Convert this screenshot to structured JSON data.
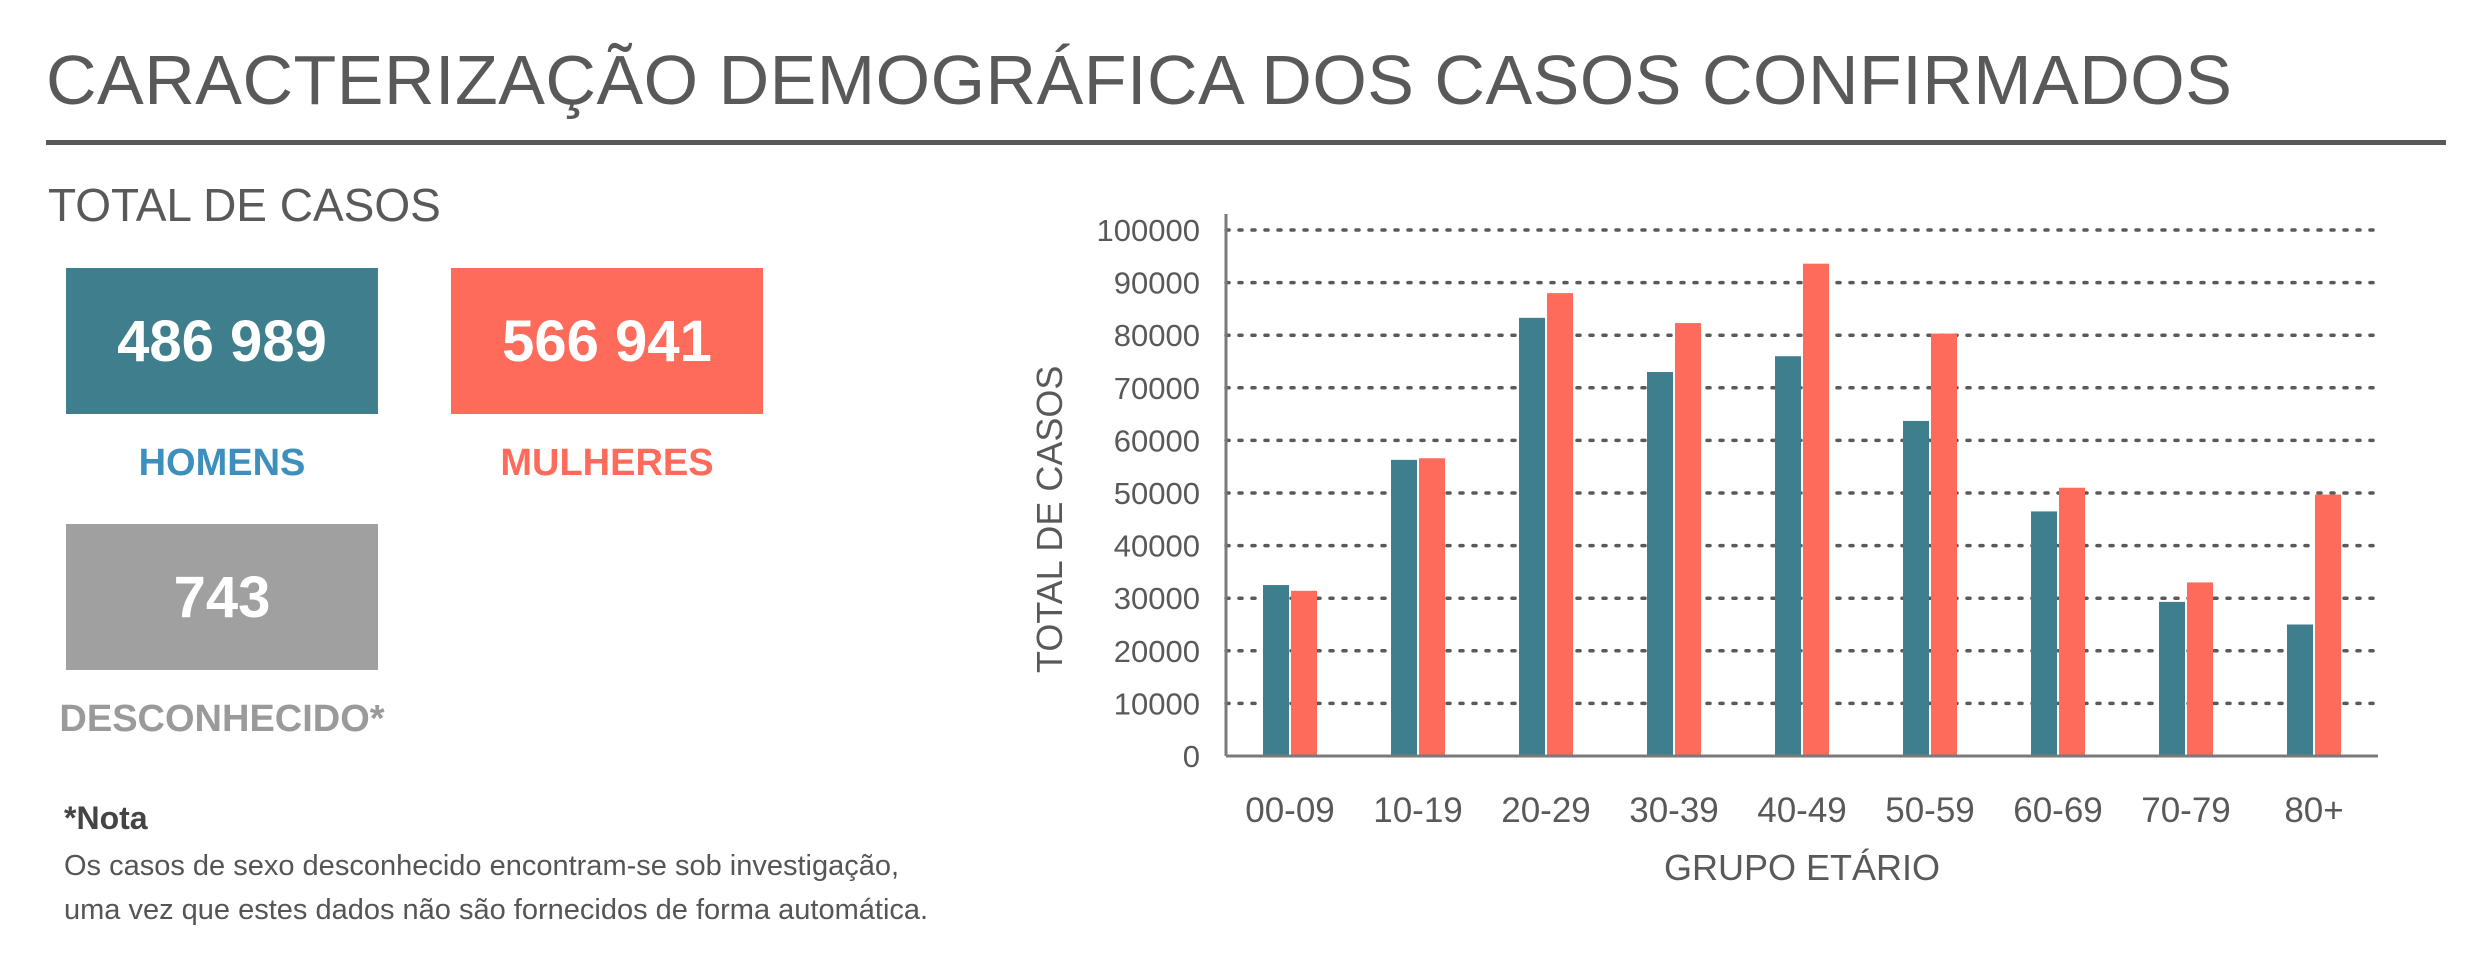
{
  "header": {
    "title": "CARACTERIZAÇÃO DEMOGRÁFICA DOS CASOS CONFIRMADOS"
  },
  "totals": {
    "label": "TOTAL DE CASOS",
    "men": {
      "value": "486 989",
      "label": "HOMENS",
      "color": "#3f7e8c",
      "label_color": "#3d8fbd"
    },
    "women": {
      "value": "566 941",
      "label": "MULHERES",
      "color": "#ff6b5b",
      "label_color": "#ff6b5b"
    },
    "unknown": {
      "value": "743",
      "label": "DESCONHECIDO*",
      "color": "#a0a0a0",
      "label_color": "#9a9a9a"
    }
  },
  "note": {
    "title": "*Nota",
    "lines": [
      "Os casos de sexo desconhecido encontram-se sob investigação,",
      "uma vez que estes dados não são fornecidos de forma automática."
    ]
  },
  "chart_data": {
    "type": "bar",
    "categories": [
      "00-09",
      "10-19",
      "20-29",
      "30-39",
      "40-49",
      "50-59",
      "60-69",
      "70-79",
      "80+"
    ],
    "series": [
      {
        "name": "",
        "color": "#3f7e8c",
        "values": [
          32500,
          56300,
          83300,
          73000,
          76000,
          63700,
          46500,
          29300,
          25000
        ]
      },
      {
        "name": "",
        "color": "#ff6b5b",
        "values": [
          31400,
          56600,
          88000,
          82300,
          93600,
          80300,
          51000,
          33000,
          49700
        ]
      }
    ],
    "xlabel": "GRUPO ETÁRIO",
    "ylabel": "TOTAL DE CASOS",
    "ylim": [
      0,
      100000
    ],
    "yticks": [
      "0",
      "10000",
      "20000",
      "30000",
      "40000",
      "50000",
      "60000",
      "70000",
      "80000",
      "90000",
      "100000"
    ],
    "grid": "dotted horizontal",
    "legend": "none"
  }
}
